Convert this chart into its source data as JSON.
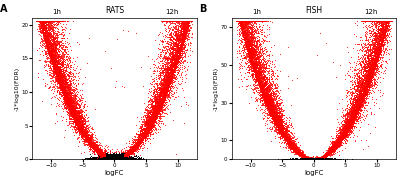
{
  "panel_A": {
    "label": "A",
    "title_left": "1h",
    "title_center": "RATS",
    "title_right": "12h",
    "xlabel": "logFC",
    "ylabel": "-1*log10(FDR)",
    "xlim": [
      -13,
      13
    ],
    "ylim": [
      0,
      21
    ],
    "yticks": [
      0,
      5,
      10,
      15,
      20
    ],
    "xticks": [
      -10,
      -5,
      0,
      5,
      10
    ]
  },
  "panel_B": {
    "label": "B",
    "title_left": "1h",
    "title_center": "FISH",
    "title_right": "12h",
    "xlabel": "logFC",
    "ylabel": "-1*log10(FDR)",
    "xlim": [
      -13,
      13
    ],
    "ylim": [
      0,
      75
    ],
    "yticks": [
      0,
      10,
      30,
      50,
      70
    ],
    "xticks": [
      -10,
      -5,
      0,
      5,
      10
    ]
  },
  "bg_color": "#ffffff",
  "black_color": "#000000",
  "red_color": "#ff0000",
  "seed": 42
}
